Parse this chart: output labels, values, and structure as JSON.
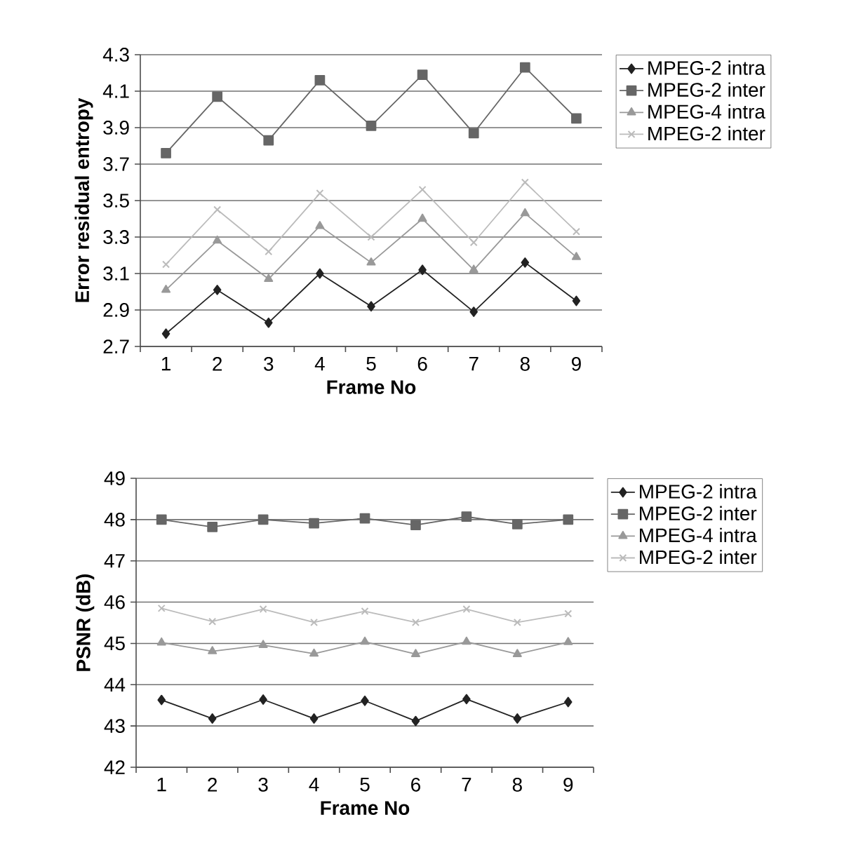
{
  "chart_data": [
    {
      "type": "line",
      "xlabel": "Frame No",
      "ylabel": "Error residual entropy",
      "categories": [
        "1",
        "2",
        "3",
        "4",
        "5",
        "6",
        "7",
        "8",
        "9"
      ],
      "ylim": [
        2.7,
        4.3
      ],
      "yticks": [
        2.7,
        2.9,
        3.1,
        3.3,
        3.5,
        3.7,
        3.9,
        4.1,
        4.3
      ],
      "grid": "y",
      "legend": "top right",
      "line_style": "solid",
      "series": [
        {
          "name": "MPEG-2 intra",
          "color": "#222222",
          "marker": "diamond",
          "values": [
            2.77,
            3.01,
            2.83,
            3.1,
            2.92,
            3.12,
            2.89,
            3.16,
            2.95
          ]
        },
        {
          "name": "MPEG-2 inter",
          "color": "#666666",
          "marker": "square",
          "values": [
            3.76,
            4.07,
            3.83,
            4.16,
            3.91,
            4.19,
            3.87,
            4.23,
            3.95
          ]
        },
        {
          "name": "MPEG-4 intra",
          "color": "#999999",
          "marker": "triangle",
          "values": [
            3.01,
            3.28,
            3.07,
            3.36,
            3.16,
            3.4,
            3.12,
            3.43,
            3.19
          ]
        },
        {
          "name": "MPEG-2 inter",
          "color": "#bbbbbb",
          "marker": "cross",
          "values": [
            3.15,
            3.45,
            3.22,
            3.54,
            3.3,
            3.56,
            3.27,
            3.6,
            3.33
          ]
        }
      ]
    },
    {
      "type": "line",
      "xlabel": "Frame No",
      "ylabel": "PSNR (dB)",
      "categories": [
        "1",
        "2",
        "3",
        "4",
        "5",
        "6",
        "7",
        "8",
        "9"
      ],
      "ylim": [
        42,
        49
      ],
      "yticks": [
        42,
        43,
        44,
        45,
        46,
        47,
        48,
        49
      ],
      "grid": "y",
      "legend": "top right",
      "line_style": "solid",
      "series": [
        {
          "name": "MPEG-2 intra",
          "color": "#222222",
          "marker": "diamond",
          "values": [
            43.63,
            43.18,
            43.64,
            43.18,
            43.61,
            43.12,
            43.65,
            43.18,
            43.58
          ]
        },
        {
          "name": "MPEG-2 inter",
          "color": "#666666",
          "marker": "square",
          "values": [
            48.0,
            47.82,
            48.0,
            47.91,
            48.03,
            47.87,
            48.07,
            47.89,
            48.0
          ]
        },
        {
          "name": "MPEG-4 intra",
          "color": "#999999",
          "marker": "triangle",
          "values": [
            45.02,
            44.81,
            44.96,
            44.75,
            45.04,
            44.74,
            45.04,
            44.74,
            45.03
          ]
        },
        {
          "name": "MPEG-2 inter",
          "color": "#bbbbbb",
          "marker": "cross",
          "values": [
            45.85,
            45.53,
            45.83,
            45.51,
            45.78,
            45.51,
            45.83,
            45.51,
            45.72
          ]
        }
      ]
    }
  ]
}
